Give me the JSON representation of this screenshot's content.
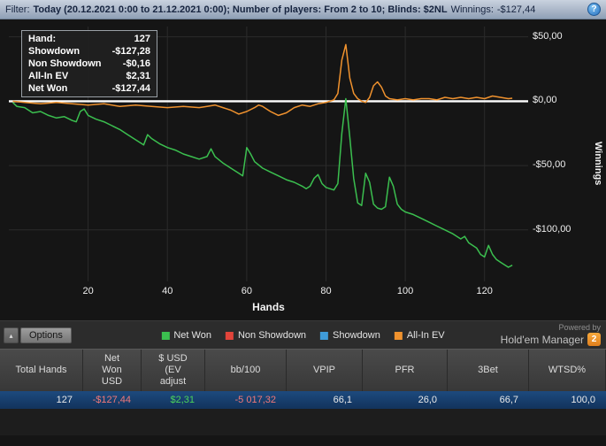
{
  "filter_bar": {
    "filter_label": "Filter:",
    "filter_value": "Today (20.12.2021 0:00 to 21.12.2021 0:00); Number of players: From 2 to 10; Blinds: $2NL",
    "winnings_label": "Winnings:",
    "winnings_value": "-$127,44",
    "help_icon": "?"
  },
  "tooltip": {
    "rows": [
      {
        "label": "Hand:",
        "value": "127"
      },
      {
        "label": "Showdown",
        "value": "-$127,28"
      },
      {
        "label": "Non Showdown",
        "value": "-$0,16"
      },
      {
        "label": "All-In EV",
        "value": "$2,31"
      },
      {
        "label": "Net Won",
        "value": "-$127,44"
      }
    ]
  },
  "chart_data": {
    "type": "line",
    "title": "",
    "xlabel": "Hands",
    "ylabel": "Winnings",
    "xlim": [
      0,
      131
    ],
    "ylim": [
      -140,
      58
    ],
    "grid": true,
    "legend_position": "bottom",
    "x_ticks": [
      20,
      40,
      60,
      80,
      100,
      120
    ],
    "y_ticks": [
      {
        "value": 50,
        "label": "$50,00"
      },
      {
        "value": 0,
        "label": "$0,00"
      },
      {
        "value": -50,
        "label": "-$50,00"
      },
      {
        "value": -100,
        "label": "-$100,00"
      }
    ],
    "reference_line": {
      "value": 0,
      "color": "#ffffff"
    },
    "series": [
      {
        "name": "Net Won",
        "color": "#3bbf4f",
        "points": [
          [
            1,
            -1
          ],
          [
            2,
            -4
          ],
          [
            4,
            -5
          ],
          [
            6,
            -9
          ],
          [
            8,
            -8
          ],
          [
            10,
            -11
          ],
          [
            12,
            -13
          ],
          [
            14,
            -12
          ],
          [
            16,
            -15
          ],
          [
            17,
            -16
          ],
          [
            18,
            -8
          ],
          [
            19,
            -6
          ],
          [
            20,
            -11
          ],
          [
            22,
            -14
          ],
          [
            24,
            -16
          ],
          [
            26,
            -19
          ],
          [
            28,
            -22
          ],
          [
            30,
            -26
          ],
          [
            32,
            -30
          ],
          [
            34,
            -34
          ],
          [
            35,
            -26
          ],
          [
            36,
            -29
          ],
          [
            38,
            -33
          ],
          [
            40,
            -36
          ],
          [
            42,
            -38
          ],
          [
            44,
            -41
          ],
          [
            46,
            -43
          ],
          [
            48,
            -45
          ],
          [
            50,
            -43
          ],
          [
            51,
            -37
          ],
          [
            52,
            -43
          ],
          [
            54,
            -48
          ],
          [
            56,
            -52
          ],
          [
            58,
            -56
          ],
          [
            59,
            -58
          ],
          [
            60,
            -36
          ],
          [
            61,
            -41
          ],
          [
            62,
            -47
          ],
          [
            64,
            -52
          ],
          [
            66,
            -55
          ],
          [
            68,
            -58
          ],
          [
            70,
            -61
          ],
          [
            72,
            -63
          ],
          [
            74,
            -66
          ],
          [
            75,
            -68
          ],
          [
            76,
            -66
          ],
          [
            77,
            -60
          ],
          [
            78,
            -57
          ],
          [
            79,
            -64
          ],
          [
            80,
            -67
          ],
          [
            82,
            -69
          ],
          [
            83,
            -64
          ],
          [
            84,
            -25
          ],
          [
            85,
            2
          ],
          [
            86,
            -28
          ],
          [
            87,
            -60
          ],
          [
            88,
            -79
          ],
          [
            89,
            -81
          ],
          [
            90,
            -56
          ],
          [
            91,
            -63
          ],
          [
            92,
            -80
          ],
          [
            93,
            -83
          ],
          [
            94,
            -84
          ],
          [
            95,
            -82
          ],
          [
            96,
            -59
          ],
          [
            97,
            -66
          ],
          [
            98,
            -80
          ],
          [
            99,
            -84
          ],
          [
            100,
            -86
          ],
          [
            102,
            -88
          ],
          [
            104,
            -91
          ],
          [
            106,
            -94
          ],
          [
            108,
            -97
          ],
          [
            110,
            -100
          ],
          [
            112,
            -103
          ],
          [
            114,
            -107
          ],
          [
            115,
            -105
          ],
          [
            116,
            -110
          ],
          [
            118,
            -114
          ],
          [
            119,
            -119
          ],
          [
            120,
            -121
          ],
          [
            121,
            -112
          ],
          [
            122,
            -119
          ],
          [
            123,
            -123
          ],
          [
            124,
            -125
          ],
          [
            125,
            -127
          ],
          [
            126,
            -129
          ],
          [
            127,
            -127.44
          ]
        ]
      },
      {
        "name": "All-In EV",
        "color": "#f0922e",
        "points": [
          [
            1,
            0
          ],
          [
            4,
            -1
          ],
          [
            8,
            -2
          ],
          [
            12,
            -1
          ],
          [
            16,
            -2
          ],
          [
            20,
            -3
          ],
          [
            24,
            -2
          ],
          [
            28,
            -4
          ],
          [
            32,
            -3
          ],
          [
            36,
            -4
          ],
          [
            40,
            -5
          ],
          [
            44,
            -4
          ],
          [
            48,
            -5
          ],
          [
            50,
            -4
          ],
          [
            52,
            -3
          ],
          [
            54,
            -5
          ],
          [
            56,
            -7
          ],
          [
            58,
            -10
          ],
          [
            60,
            -8
          ],
          [
            62,
            -5
          ],
          [
            63,
            -3
          ],
          [
            64,
            -4
          ],
          [
            66,
            -8
          ],
          [
            68,
            -11
          ],
          [
            70,
            -9
          ],
          [
            72,
            -5
          ],
          [
            74,
            -3
          ],
          [
            76,
            -4
          ],
          [
            78,
            -2
          ],
          [
            80,
            -1
          ],
          [
            82,
            1
          ],
          [
            83,
            6
          ],
          [
            84,
            32
          ],
          [
            85,
            44
          ],
          [
            86,
            18
          ],
          [
            87,
            6
          ],
          [
            88,
            2
          ],
          [
            89,
            0
          ],
          [
            90,
            -1
          ],
          [
            91,
            3
          ],
          [
            92,
            12
          ],
          [
            93,
            15
          ],
          [
            94,
            11
          ],
          [
            95,
            4
          ],
          [
            96,
            2
          ],
          [
            98,
            1
          ],
          [
            100,
            2
          ],
          [
            102,
            1
          ],
          [
            104,
            2
          ],
          [
            106,
            2
          ],
          [
            108,
            1
          ],
          [
            110,
            3
          ],
          [
            112,
            2
          ],
          [
            114,
            3
          ],
          [
            116,
            2
          ],
          [
            118,
            3
          ],
          [
            120,
            2
          ],
          [
            122,
            4
          ],
          [
            124,
            3
          ],
          [
            126,
            2
          ],
          [
            127,
            2.31
          ]
        ]
      }
    ]
  },
  "options": {
    "label": "Options",
    "caret": "▴"
  },
  "legend": {
    "items": [
      {
        "label": "Net Won"
      },
      {
        "label": "Non Showdown"
      },
      {
        "label": "Showdown"
      },
      {
        "label": "All-In EV"
      }
    ]
  },
  "branding": {
    "powered_by": "Powered by",
    "app_name": "Hold'em Manager",
    "badge": "2"
  },
  "stats_table": {
    "headers": [
      "Total Hands",
      "Net Won USD",
      "$ USD (EV adjust",
      "bb/100",
      "VPIP",
      "PFR",
      "3Bet",
      "WTSD%"
    ],
    "row": [
      "127",
      "-$127,44",
      "$2,31",
      "-5 017,32",
      "66,1",
      "26,0",
      "66,7",
      "100,0"
    ]
  },
  "colors": {
    "accent_green": "#3bbf4f",
    "accent_red": "#e2443a",
    "accent_blue": "#3f9bd8",
    "accent_orange": "#f0922e",
    "negative_text": "#f07878",
    "positive_text": "#4cd35a",
    "selected_row": "#1d4a7e",
    "topbar_text": "#16243f"
  }
}
